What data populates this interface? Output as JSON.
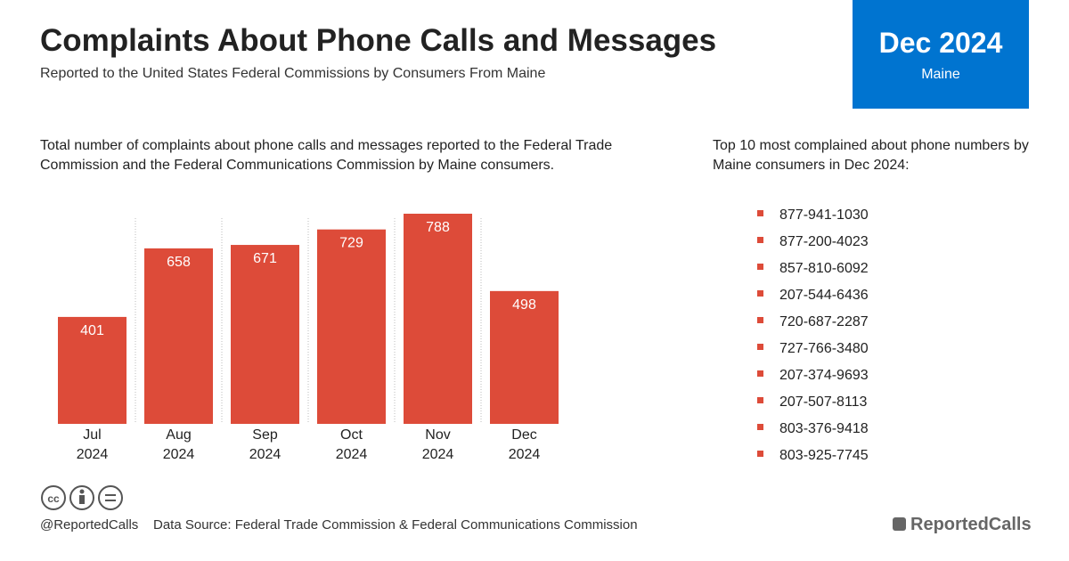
{
  "header": {
    "title": "Complaints About Phone Calls and Messages",
    "subtitle": "Reported to the United States Federal Commissions by Consumers From Maine"
  },
  "badge": {
    "period": "Dec 2024",
    "state": "Maine"
  },
  "chart_data": {
    "type": "bar",
    "description": "Total number of complaints about phone calls and messages reported to the Federal Trade Commission and the Federal Communications Commission by Maine consumers.",
    "categories": [
      "Jul 2024",
      "Aug 2024",
      "Sep 2024",
      "Oct 2024",
      "Nov 2024",
      "Dec 2024"
    ],
    "values": [
      401,
      658,
      671,
      729,
      788,
      498
    ],
    "color": "#dd4b39"
  },
  "top_numbers": {
    "description": "Top 10 most complained about phone numbers by Maine consumers in Dec 2024:",
    "items": [
      "877-941-1030",
      "877-200-4023",
      "857-810-6092",
      "207-544-6436",
      "720-687-2287",
      "727-766-3480",
      "207-374-9693",
      "207-507-8113",
      "803-376-9418",
      "803-925-7745"
    ]
  },
  "footer": {
    "handle": "@ReportedCalls",
    "source": "Data Source: Federal Trade Commission & Federal Communications Commission",
    "logo": "ReportedCalls"
  }
}
